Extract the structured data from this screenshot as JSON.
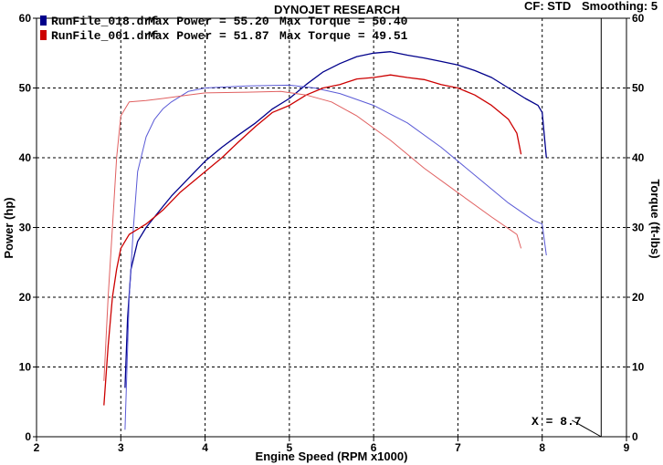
{
  "header": {
    "cf_label": "CF: STD",
    "smoothing_label": "Smoothing: 5",
    "title": "DYNOJET RESEARCH"
  },
  "legend": [
    {
      "file": "RunFile_018.drf",
      "power_text": "Max Power = 55.20",
      "torque_text": "Max Torque = 50.40",
      "color": "#00008b"
    },
    {
      "file": "RunFile_001.drf",
      "power_text": "Max Power = 51.87",
      "torque_text": "Max Torque = 49.51",
      "color": "#cc0000"
    }
  ],
  "marker": {
    "label": "X = 8.7",
    "x": 8.7
  },
  "colors": {
    "run018_power": "#00008b",
    "run018_torque": "#5a5ad6",
    "run001_power": "#cc0000",
    "run001_torque": "#e06060"
  },
  "chart_data": {
    "type": "line",
    "xlabel": "Engine Speed (RPM x1000)",
    "ylabel": "Power (hp)",
    "y2label": "Torque (ft-lbs)",
    "xlim": [
      2,
      9
    ],
    "ylim": [
      0,
      60
    ],
    "y2lim": [
      0,
      60
    ],
    "xticks": [
      2,
      3,
      4,
      5,
      6,
      7,
      8,
      9
    ],
    "yticks": [
      0,
      10,
      20,
      30,
      40,
      50,
      60
    ],
    "y2ticks": [
      0,
      10,
      20,
      30,
      40,
      50,
      60
    ],
    "grid": true,
    "series": [
      {
        "name": "RunFile_018.drf Max Power = 55.20",
        "measure": "power",
        "axis": "left",
        "x": [
          3.05,
          3.08,
          3.12,
          3.2,
          3.3,
          3.4,
          3.5,
          3.6,
          3.8,
          4.0,
          4.2,
          4.4,
          4.6,
          4.8,
          5.0,
          5.2,
          5.4,
          5.6,
          5.8,
          6.0,
          6.2,
          6.4,
          6.6,
          6.8,
          7.0,
          7.2,
          7.4,
          7.6,
          7.8,
          7.95,
          8.0,
          8.05
        ],
        "y": [
          7,
          17,
          24,
          28,
          30,
          31.5,
          33,
          34.5,
          37,
          39.5,
          41.5,
          43.3,
          45,
          47,
          48.5,
          50.5,
          52.3,
          53.5,
          54.5,
          55.0,
          55.2,
          54.7,
          54.3,
          53.8,
          53.3,
          52.5,
          51.5,
          50.0,
          48.5,
          47.5,
          46.5,
          40
        ]
      },
      {
        "name": "RunFile_018.drf Max Torque = 50.40",
        "measure": "torque",
        "axis": "right",
        "x": [
          3.05,
          3.1,
          3.15,
          3.2,
          3.3,
          3.4,
          3.5,
          3.6,
          3.8,
          4.0,
          4.5,
          5.0,
          5.3,
          5.6,
          6.0,
          6.4,
          6.8,
          7.2,
          7.6,
          7.9,
          8.0,
          8.05
        ],
        "y": [
          1,
          20,
          30,
          38,
          43,
          45.5,
          47,
          48,
          49.5,
          50.0,
          50.3,
          50.4,
          50.0,
          49.2,
          47.5,
          45.0,
          41.5,
          37.5,
          33.5,
          31.0,
          30.5,
          26
        ]
      },
      {
        "name": "RunFile_001.drf Max Power = 51.87",
        "measure": "power",
        "axis": "left",
        "x": [
          2.8,
          2.85,
          2.9,
          2.95,
          3.0,
          3.1,
          3.3,
          3.5,
          3.7,
          4.0,
          4.2,
          4.4,
          4.6,
          4.8,
          5.0,
          5.2,
          5.4,
          5.6,
          5.8,
          6.0,
          6.2,
          6.4,
          6.6,
          6.8,
          7.0,
          7.2,
          7.4,
          7.6,
          7.7,
          7.75
        ],
        "y": [
          4.5,
          13,
          20,
          24,
          27,
          29,
          30.5,
          32.5,
          35,
          38,
          40,
          42.3,
          44.5,
          46.5,
          47.5,
          49,
          50,
          50.5,
          51.3,
          51.5,
          51.87,
          51.5,
          51.2,
          50.5,
          50,
          49,
          47.5,
          45.5,
          43.5,
          40.5
        ]
      },
      {
        "name": "RunFile_001.drf Max Torque = 49.51",
        "measure": "torque",
        "axis": "right",
        "x": [
          2.8,
          2.85,
          2.9,
          2.95,
          3.0,
          3.1,
          3.3,
          3.5,
          3.8,
          4.0,
          4.5,
          4.9,
          5.2,
          5.5,
          5.8,
          6.2,
          6.6,
          7.0,
          7.4,
          7.7,
          7.75
        ],
        "y": [
          8,
          20,
          30,
          40,
          46,
          48,
          48.2,
          48.5,
          49,
          49.3,
          49.4,
          49.51,
          49,
          48,
          46,
          42.5,
          38.5,
          35,
          31.5,
          29,
          27
        ]
      }
    ]
  }
}
